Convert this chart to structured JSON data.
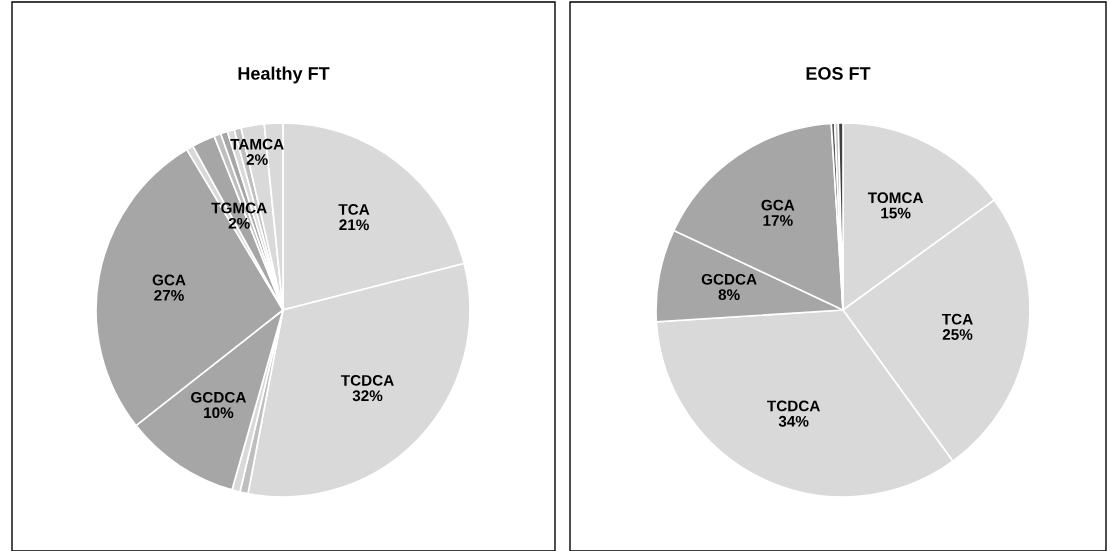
{
  "chart_data": [
    {
      "type": "pie",
      "title": "Healthy FT",
      "categories": [
        "TCA",
        "TCDCA",
        null,
        null,
        "GCDCA",
        "GCA",
        null,
        "TGMCA",
        null,
        null,
        null,
        null,
        "TAMCA",
        null
      ],
      "values": [
        21,
        32,
        0.7,
        0.7,
        10,
        27,
        0.6,
        2,
        0.6,
        0.6,
        0.6,
        0.6,
        2,
        1.6
      ],
      "value_labels": [
        "21%",
        "32%",
        null,
        null,
        "10%",
        "27%",
        null,
        "2%",
        null,
        null,
        null,
        null,
        "2%",
        null
      ],
      "colors": [
        "#d9d9d9",
        "#d9d9d9",
        "#bfbfbf",
        "#d9d9d9",
        "#a6a6a6",
        "#a6a6a6",
        "#d9d9d9",
        "#a6a6a6",
        "#bfbfbf",
        "#a6a6a6",
        "#d9d9d9",
        "#bfbfbf",
        "#d9d9d9",
        "#d9d9d9"
      ]
    },
    {
      "type": "pie",
      "title": "EOS FT",
      "categories": [
        "TOMCA",
        "TCA",
        "TCDCA",
        "GCDCA",
        "GCA",
        null,
        null,
        null
      ],
      "values": [
        15,
        25,
        34,
        8,
        17,
        0.3,
        0.3,
        0.4
      ],
      "value_labels": [
        "15%",
        "25%",
        "34%",
        "8%",
        "17%",
        null,
        null,
        null
      ],
      "colors": [
        "#d9d9d9",
        "#d9d9d9",
        "#d9d9d9",
        "#a6a6a6",
        "#a6a6a6",
        "#595959",
        "#bfbfbf",
        "#404040"
      ]
    }
  ]
}
